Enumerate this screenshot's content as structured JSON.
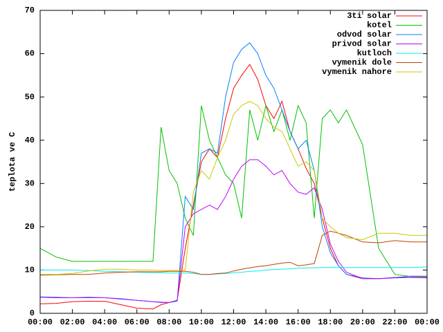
{
  "chart_data": {
    "type": "line",
    "ylabel": "teplota ve C",
    "x": [
      0,
      1,
      2,
      3,
      4,
      5,
      6,
      7,
      7.5,
      8,
      8.5,
      9,
      9.5,
      10,
      10.5,
      11,
      11.5,
      12,
      12.5,
      13,
      13.5,
      14,
      14.5,
      15,
      15.5,
      16,
      16.5,
      17,
      17.5,
      18,
      18.5,
      19,
      20,
      21,
      22,
      23,
      24
    ],
    "xlim": [
      0,
      24
    ],
    "xticks": [
      {
        "value": 0,
        "label": "00:00"
      },
      {
        "value": 2,
        "label": "02:00"
      },
      {
        "value": 4,
        "label": "04:00"
      },
      {
        "value": 6,
        "label": "06:00"
      },
      {
        "value": 8,
        "label": "08:00"
      },
      {
        "value": 10,
        "label": "10:00"
      },
      {
        "value": 12,
        "label": "12:00"
      },
      {
        "value": 14,
        "label": "14:00"
      },
      {
        "value": 16,
        "label": "16:00"
      },
      {
        "value": 18,
        "label": "18:00"
      },
      {
        "value": 20,
        "label": "20:00"
      },
      {
        "value": 22,
        "label": "22:00"
      },
      {
        "value": 24,
        "label": "00:00"
      }
    ],
    "ylim": [
      0,
      70
    ],
    "yticks": [
      0,
      10,
      20,
      30,
      40,
      50,
      60,
      70
    ],
    "grid": false,
    "legend": "top-right",
    "series": [
      {
        "name": "3ti solar",
        "color": "#ff0000",
        "values": [
          2.2,
          2.3,
          2.7,
          2.8,
          2.8,
          2.0,
          1.2,
          1.0,
          2.0,
          2.5,
          3.0,
          15,
          25,
          35,
          38,
          36,
          45,
          52,
          55,
          57.5,
          54,
          48,
          45,
          49,
          42,
          38,
          33.5,
          30,
          22,
          15,
          11,
          9,
          8,
          8,
          8.3,
          8.3,
          8.3
        ]
      },
      {
        "name": "kotel",
        "color": "#00c000",
        "values": [
          15,
          13,
          12,
          12,
          12,
          12,
          12,
          12,
          43,
          33,
          30,
          22,
          18,
          48,
          40,
          36,
          32,
          30,
          22,
          47,
          40,
          48,
          42,
          47,
          40,
          48,
          44,
          22,
          45,
          47,
          44,
          47,
          39,
          15,
          9,
          8.5,
          8.5
        ]
      },
      {
        "name": "odvod solar",
        "color": "#0080ff",
        "values": [
          3.8,
          3.7,
          3.6,
          3.6,
          3.6,
          3.4,
          3.0,
          2.7,
          2.6,
          2.5,
          2.8,
          27,
          24,
          37,
          38,
          37,
          50,
          58,
          61,
          62.5,
          60,
          55,
          52,
          47,
          42,
          38,
          40,
          33,
          20,
          14,
          11,
          9,
          8.2,
          8,
          8.3,
          8.6,
          8.6
        ]
      },
      {
        "name": "privod solar",
        "color": "#c000ff",
        "values": [
          3.7,
          3.6,
          3.6,
          3.7,
          3.6,
          3.3,
          3.0,
          2.7,
          2.5,
          2.5,
          3,
          20,
          23,
          24,
          25,
          24,
          27,
          31,
          34,
          35.5,
          35.5,
          34,
          32,
          33,
          30,
          28,
          27.5,
          29,
          24,
          16,
          12,
          9.5,
          8,
          8,
          8.2,
          8.3,
          8.2
        ]
      },
      {
        "name": "kutloch",
        "color": "#00eeee",
        "values": [
          10,
          10,
          10,
          9.9,
          9.7,
          9.6,
          9.5,
          9.4,
          9.4,
          9.3,
          9.3,
          9.3,
          9.2,
          9.0,
          9.0,
          9.1,
          9.2,
          9.4,
          9.5,
          9.7,
          9.8,
          10,
          10.1,
          10.2,
          10.3,
          10.4,
          10.5,
          10.5,
          10.6,
          10.6,
          10.6,
          10.6,
          10.6,
          10.6,
          10.6,
          10.6,
          10.7
        ]
      },
      {
        "name": "vymenik dole",
        "color": "#c04000",
        "values": [
          8.8,
          8.9,
          9.0,
          9.0,
          9.3,
          9.5,
          9.6,
          9.6,
          9.6,
          9.7,
          9.7,
          9.7,
          9.5,
          9.0,
          9.0,
          9.2,
          9.3,
          9.8,
          10.2,
          10.5,
          10.8,
          11.0,
          11.3,
          11.6,
          11.8,
          11.0,
          11.2,
          11.5,
          18,
          19,
          18.5,
          18,
          16.5,
          16.3,
          16.8,
          16.5,
          16.5
        ]
      },
      {
        "name": "vymenik nahore",
        "color": "#c8c800",
        "values": [
          9.0,
          9.0,
          9.2,
          9.8,
          10.2,
          10.2,
          10.0,
          10.0,
          9.9,
          9.9,
          9.9,
          10,
          28,
          33,
          31,
          36,
          40,
          46,
          48,
          49,
          48,
          45,
          43,
          42,
          38,
          34,
          35,
          33,
          22,
          20,
          18.5,
          17.5,
          17,
          18.5,
          18.5,
          18,
          18
        ]
      }
    ]
  }
}
